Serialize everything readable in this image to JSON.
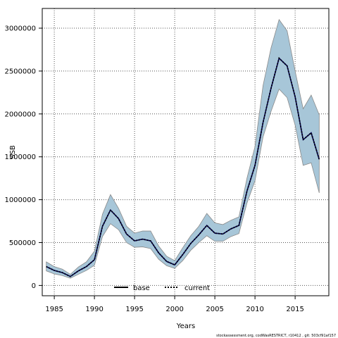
{
  "chart_data": {
    "type": "line",
    "xlabel": "Years",
    "ylabel": "SSB",
    "xlim": [
      1983.5,
      2019.2
    ],
    "ylim": [
      -120000,
      3230000
    ],
    "x_ticks": [
      1985,
      1990,
      1995,
      2000,
      2005,
      2010,
      2015
    ],
    "y_ticks": [
      0,
      500000,
      1000000,
      1500000,
      2000000,
      2500000,
      3000000
    ],
    "grid": true,
    "legend_position": "bottom-center",
    "legend": [
      {
        "label": "base",
        "style": "solid",
        "color": "#000000"
      },
      {
        "label": "current",
        "style": "dotted",
        "color": "#000000"
      }
    ],
    "band_color": "#a7c6d8",
    "band_edge_color": "#8a8a8a",
    "line_color": "#00004c",
    "years": [
      1984,
      1985,
      1986,
      1987,
      1988,
      1989,
      1990,
      1991,
      1992,
      1993,
      1994,
      1995,
      1996,
      1997,
      1998,
      1999,
      2000,
      2001,
      2002,
      2003,
      2004,
      2005,
      2006,
      2007,
      2008,
      2009,
      2010,
      2011,
      2012,
      2013,
      2014,
      2015,
      2016,
      2017,
      2018
    ],
    "series": [
      {
        "name": "base",
        "values": [
          220000,
          175000,
          150000,
          105000,
          170000,
          220000,
          300000,
          690000,
          880000,
          780000,
          600000,
          520000,
          540000,
          520000,
          380000,
          280000,
          240000,
          360000,
          490000,
          590000,
          700000,
          610000,
          600000,
          660000,
          700000,
          1100000,
          1400000,
          1900000,
          2300000,
          2650000,
          2560000,
          2200000,
          1700000,
          1780000,
          1470000
        ]
      },
      {
        "name": "current",
        "values": [
          220000,
          175000,
          150000,
          105000,
          170000,
          220000,
          300000,
          690000,
          880000,
          780000,
          600000,
          520000,
          540000,
          520000,
          380000,
          280000,
          240000,
          360000,
          490000,
          590000,
          700000,
          610000,
          600000,
          660000,
          700000,
          1100000,
          1400000,
          1900000,
          2300000,
          2650000,
          2560000,
          2200000,
          1700000,
          1780000,
          1470000
        ]
      }
    ],
    "band_upper": [
      275000,
      220000,
      190000,
      130000,
      215000,
      275000,
      400000,
      830000,
      1060000,
      900000,
      690000,
      610000,
      635000,
      635000,
      460000,
      340000,
      290000,
      440000,
      580000,
      690000,
      840000,
      730000,
      710000,
      760000,
      800000,
      1250000,
      1620000,
      2330000,
      2770000,
      3100000,
      2970000,
      2500000,
      2060000,
      2220000,
      1990000
    ],
    "band_lower": [
      170000,
      135000,
      115000,
      85000,
      130000,
      175000,
      235000,
      570000,
      720000,
      650000,
      500000,
      445000,
      450000,
      430000,
      305000,
      230000,
      200000,
      290000,
      410000,
      500000,
      580000,
      515000,
      515000,
      570000,
      605000,
      960000,
      1220000,
      1730000,
      2030000,
      2290000,
      2190000,
      1870000,
      1400000,
      1430000,
      1080000
    ]
  },
  "footer": "stockassessment.org, codWasRESTRICT, r10412 , git: 503cf91af157"
}
